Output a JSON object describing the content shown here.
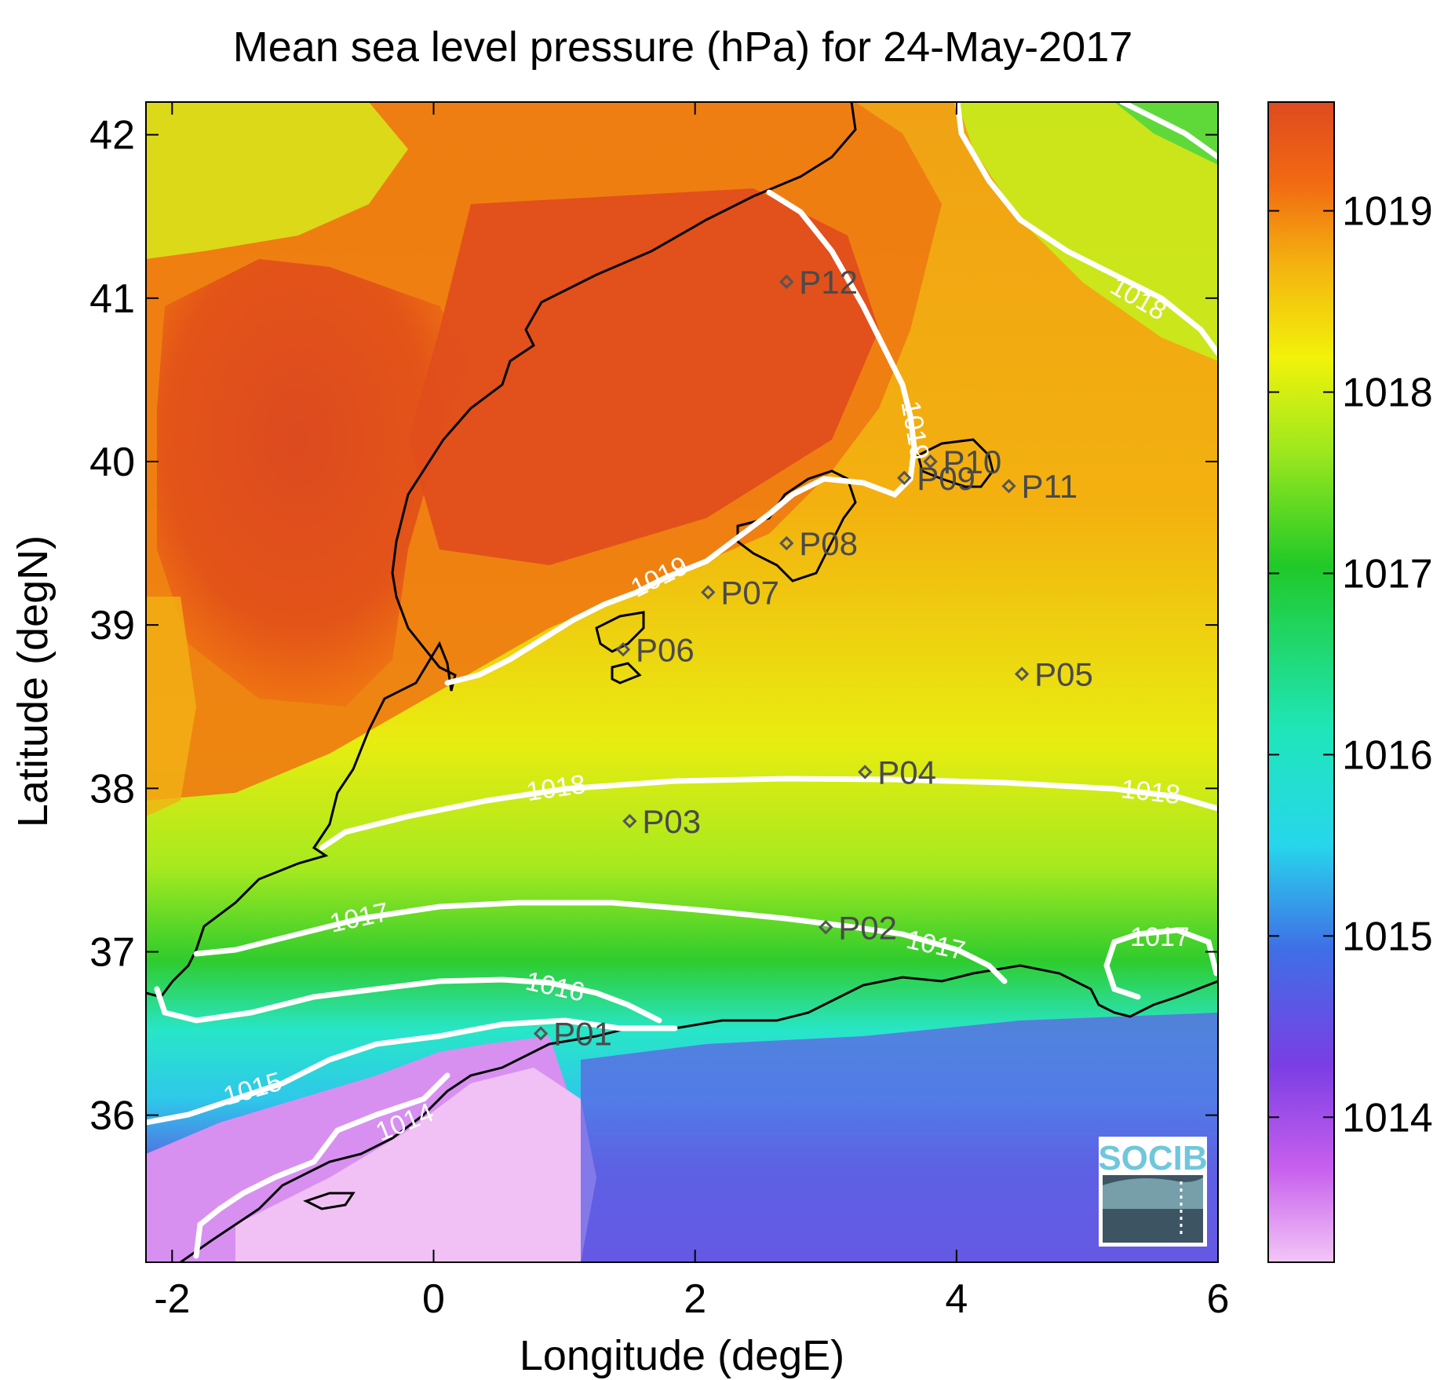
{
  "title": "Mean sea level pressure (hPa) for 24-May-2017",
  "xlabel": "Longitude (degE)",
  "ylabel": "Latitude (degN)",
  "logo_text": "SOCIB",
  "map": {
    "lon_range": [
      -2.2,
      6.0
    ],
    "lat_range": [
      35.1,
      42.2
    ],
    "lon_ticks": [
      "-2",
      "0",
      "2",
      "4",
      "6"
    ],
    "lat_ticks": [
      "36",
      "37",
      "38",
      "39",
      "40",
      "41",
      "42"
    ],
    "colorbar_ticks": [
      "1014",
      "1015",
      "1016",
      "1017",
      "1018",
      "1019"
    ],
    "colorbar_range": [
      1013.2,
      1019.6
    ],
    "colors": {
      "high": "#de4a1e",
      "mid_high": "#f29a0c",
      "mid": "#e9f20a",
      "mid_low": "#28cf2a",
      "low": "#27e7e0",
      "very_low": "#7340e2",
      "min": "#f1c0f4",
      "contour": "#ffffff",
      "coast": "#000000",
      "marker": "#555555"
    },
    "stations": [
      {
        "label": "P01",
        "lon": 0.82,
        "lat": 36.5
      },
      {
        "label": "P02",
        "lon": 3.0,
        "lat": 37.15
      },
      {
        "label": "P03",
        "lon": 1.5,
        "lat": 37.8
      },
      {
        "label": "P04",
        "lon": 3.3,
        "lat": 38.1
      },
      {
        "label": "P05",
        "lon": 4.5,
        "lat": 38.7
      },
      {
        "label": "P06",
        "lon": 1.45,
        "lat": 38.85
      },
      {
        "label": "P07",
        "lon": 2.1,
        "lat": 39.2
      },
      {
        "label": "P08",
        "lon": 2.7,
        "lat": 39.5
      },
      {
        "label": "P09",
        "lon": 3.6,
        "lat": 39.9
      },
      {
        "label": "P10",
        "lon": 3.8,
        "lat": 40.0
      },
      {
        "label": "P11",
        "lon": 4.4,
        "lat": 39.85
      },
      {
        "label": "P12",
        "lon": 2.7,
        "lat": 41.1
      }
    ],
    "contour_labels": [
      "1014",
      "1015",
      "1016",
      "1017",
      "1017",
      "1017",
      "1018",
      "1018",
      "1018",
      "1019",
      "1019"
    ]
  }
}
